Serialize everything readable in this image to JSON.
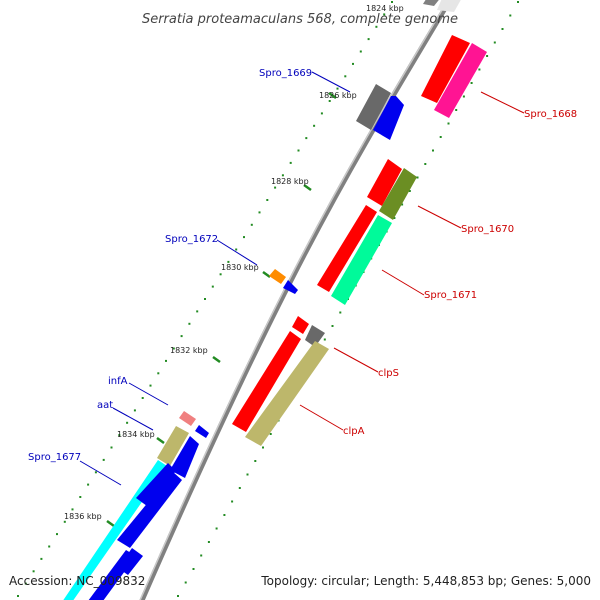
{
  "title": "Serratia proteamaculans 568, complete genome",
  "accession": "Accession: NC_009832",
  "topology": "Topology: circular; Length: 5,448,853 bp; Genes: 5,000",
  "ticks": [
    {
      "kb": 1824,
      "label": "1824 kbp"
    },
    {
      "kb": 1826,
      "label": "1826 kbp"
    },
    {
      "kb": 1828,
      "label": "1828 kbp"
    },
    {
      "kb": 1830,
      "label": "1830 kbp"
    },
    {
      "kb": 1832,
      "label": "1832 kbp"
    },
    {
      "kb": 1834,
      "label": "1834 kbp"
    },
    {
      "kb": 1836,
      "label": "1836 kbp"
    }
  ],
  "genes": [
    {
      "name": "Spro_1668",
      "strand": "forward",
      "color": "#ff1493"
    },
    {
      "name": "Spro_1669",
      "strand": "reverse",
      "color": "#0000ee"
    },
    {
      "name": "Spro_1670",
      "strand": "forward",
      "color": "#6b8e23"
    },
    {
      "name": "Spro_1671",
      "strand": "forward",
      "color": "#00fa9a"
    },
    {
      "name": "Spro_1672",
      "strand": "reverse",
      "color": "#0000ee"
    },
    {
      "name": "clpS",
      "strand": "forward",
      "color": "#808080"
    },
    {
      "name": "clpA",
      "strand": "forward",
      "color": "#bdb76b"
    },
    {
      "name": "infA",
      "strand": "reverse",
      "color": "#0000ee"
    },
    {
      "name": "aat",
      "strand": "reverse",
      "color": "#bdb76b"
    },
    {
      "name": "Spro_1677",
      "strand": "reverse",
      "color": "#00ffff"
    }
  ],
  "colors": {
    "forward_label": "#cc0000",
    "reverse_label": "#0000bb",
    "cds": "#ff0000",
    "backbone": "#808080",
    "gc_dots": "#228b22"
  }
}
